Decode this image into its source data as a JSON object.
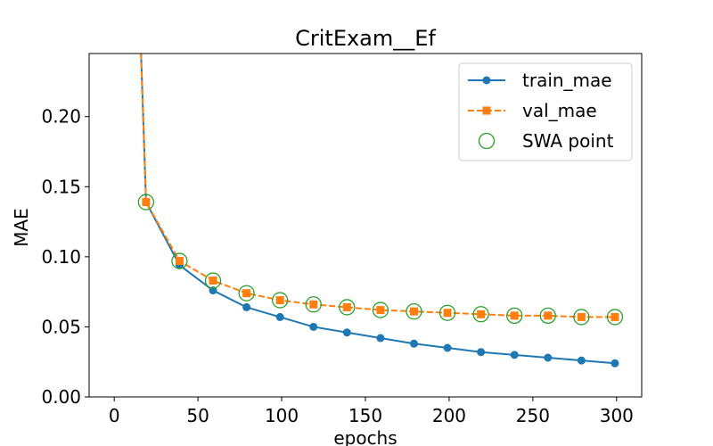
{
  "chart_data": {
    "type": "line",
    "title": "CritExam__Ef",
    "xlabel": "epochs",
    "ylabel": "MAE",
    "xlim": [
      -15,
      315
    ],
    "ylim": [
      0.0,
      0.245
    ],
    "xticks": [
      0,
      50,
      100,
      150,
      200,
      250,
      300
    ],
    "yticks": [
      0.0,
      0.05,
      0.1,
      0.15,
      0.2
    ],
    "xtick_labels": [
      "0",
      "50",
      "100",
      "150",
      "200",
      "250",
      "300"
    ],
    "ytick_labels": [
      "0.00",
      "0.05",
      "0.10",
      "0.15",
      "0.20"
    ],
    "grid": false,
    "legend_position": "top-right",
    "series": [
      {
        "name": "train_mae",
        "color": "#1f77b4",
        "line_style": "solid",
        "marker": "circle",
        "curve_start": {
          "x": 16,
          "y": 0.245
        },
        "x": [
          19,
          39,
          59,
          79,
          99,
          119,
          139,
          159,
          179,
          199,
          219,
          239,
          259,
          279,
          299
        ],
        "values": [
          0.139,
          0.094,
          0.076,
          0.064,
          0.057,
          0.05,
          0.046,
          0.042,
          0.038,
          0.035,
          0.032,
          0.03,
          0.028,
          0.026,
          0.024
        ]
      },
      {
        "name": "val_mae",
        "color": "#ff7f0e",
        "line_style": "dashed",
        "marker": "square",
        "curve_start": {
          "x": 16,
          "y": 0.245
        },
        "x": [
          19,
          39,
          59,
          79,
          99,
          119,
          139,
          159,
          179,
          199,
          219,
          239,
          259,
          279,
          299
        ],
        "values": [
          0.139,
          0.097,
          0.083,
          0.074,
          0.069,
          0.066,
          0.064,
          0.062,
          0.061,
          0.06,
          0.059,
          0.058,
          0.058,
          0.057,
          0.057
        ]
      },
      {
        "name": "SWA point",
        "color": "#2ca02c",
        "line_style": "none",
        "marker": "hollow-circle",
        "x": [
          19,
          39,
          59,
          79,
          99,
          119,
          139,
          159,
          179,
          199,
          219,
          239,
          259,
          279,
          299
        ],
        "values": [
          0.139,
          0.097,
          0.083,
          0.074,
          0.069,
          0.066,
          0.064,
          0.062,
          0.061,
          0.06,
          0.059,
          0.058,
          0.058,
          0.057,
          0.057
        ]
      }
    ]
  }
}
